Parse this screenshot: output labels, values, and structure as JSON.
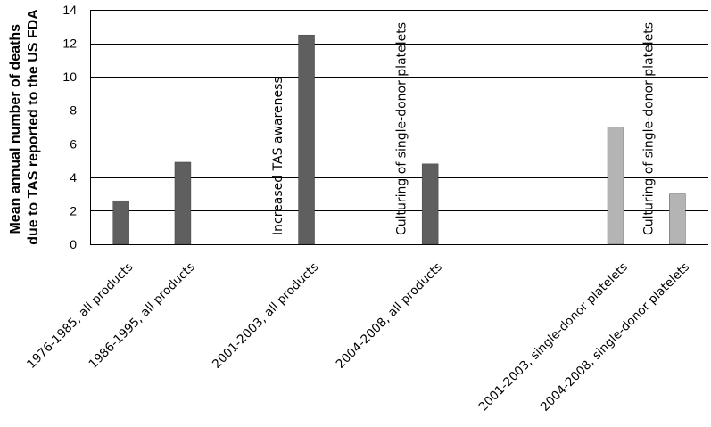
{
  "chart_data": {
    "type": "bar",
    "title": "",
    "xlabel": "",
    "ylabel_lines": [
      "Mean annual number of deaths",
      "due to TAS reported to the US FDA"
    ],
    "ylim": [
      0,
      14
    ],
    "yticks": [
      0,
      2,
      4,
      6,
      8,
      10,
      12,
      14
    ],
    "grid": true,
    "legend": "none",
    "slots": 10,
    "colors": {
      "all_products": "#5f5f5f",
      "single_donor": "#b4b4b4"
    },
    "bars": [
      {
        "label": "1976-1985, all products",
        "value": 2.6,
        "slot": 0,
        "group": "all_products"
      },
      {
        "label": "1986-1995, all products",
        "value": 4.9,
        "slot": 1,
        "group": "all_products"
      },
      {
        "label": "2001-2003, all products",
        "value": 12.5,
        "slot": 3,
        "group": "all_products"
      },
      {
        "label": "2004-2008, all products",
        "value": 4.8,
        "slot": 5,
        "group": "all_products"
      },
      {
        "label": "2001-2003, single-donor platelets",
        "value": 7.0,
        "slot": 8,
        "group": "single_donor"
      },
      {
        "label": "2004-2008, single-donor platelets",
        "value": 3.0,
        "slot": 9,
        "group": "single_donor"
      }
    ],
    "annotations": [
      {
        "text": "Increased TAS awareness",
        "slot": 2.6
      },
      {
        "text": "Culturing of single-donor  platelets",
        "slot": 4.6
      },
      {
        "text": "Culturing of single-donor  platelets",
        "slot": 8.6
      }
    ]
  }
}
